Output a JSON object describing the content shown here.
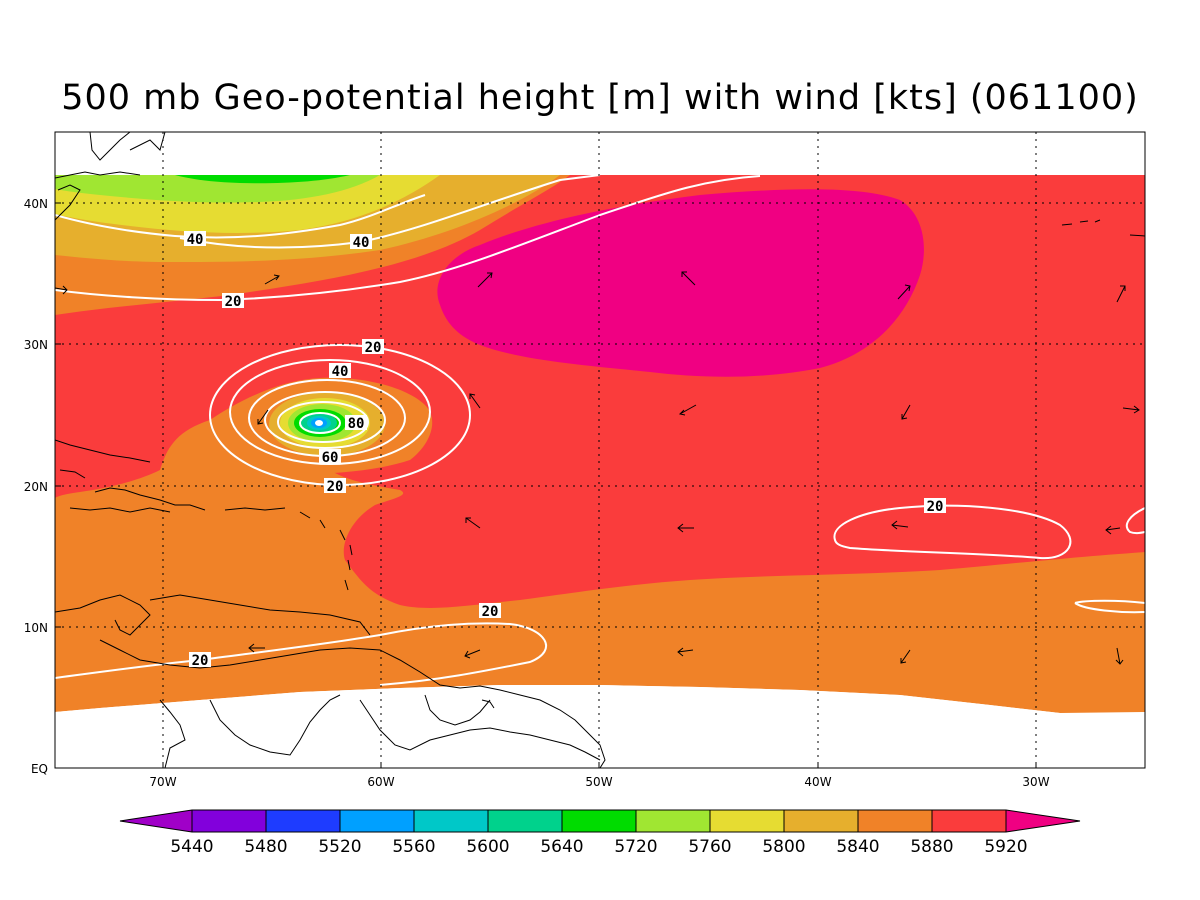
{
  "title": "500 mb Geo-potential height [m] with wind [kts] (061100)",
  "colors": {
    "c5440": "#a000c8",
    "c5480": "#8200dc",
    "c5520": "#1e3cff",
    "c5560": "#00a0ff",
    "c5600": "#00c8c8",
    "c5640": "#00d28c",
    "c5720": "#00dc00",
    "c5760": "#a0e632",
    "c5800": "#e6dc32",
    "c5840": "#e6af2d",
    "c5880": "#f08228",
    "c5920": "#fa3c3c",
    "high": "#f00082",
    "coast": "#000000",
    "contour": "#ffffff"
  },
  "axes": {
    "lon_ticks": [
      "70W",
      "60W",
      "50W",
      "40W",
      "30W"
    ],
    "lat_ticks": [
      "40N",
      "30N",
      "20N",
      "10N",
      "EQ"
    ]
  },
  "colorbar": {
    "labels": [
      "5440",
      "5480",
      "5520",
      "5560",
      "5600",
      "5640",
      "5720",
      "5760",
      "5800",
      "5840",
      "5880",
      "5920"
    ]
  },
  "contour_labels": {
    "l1": "40",
    "l2": "40",
    "l3": "20",
    "l4": "20",
    "l5": "40",
    "l6": "80",
    "l7": "60",
    "l8": "20",
    "l9": "20",
    "l10": "20",
    "l11": "20"
  }
}
